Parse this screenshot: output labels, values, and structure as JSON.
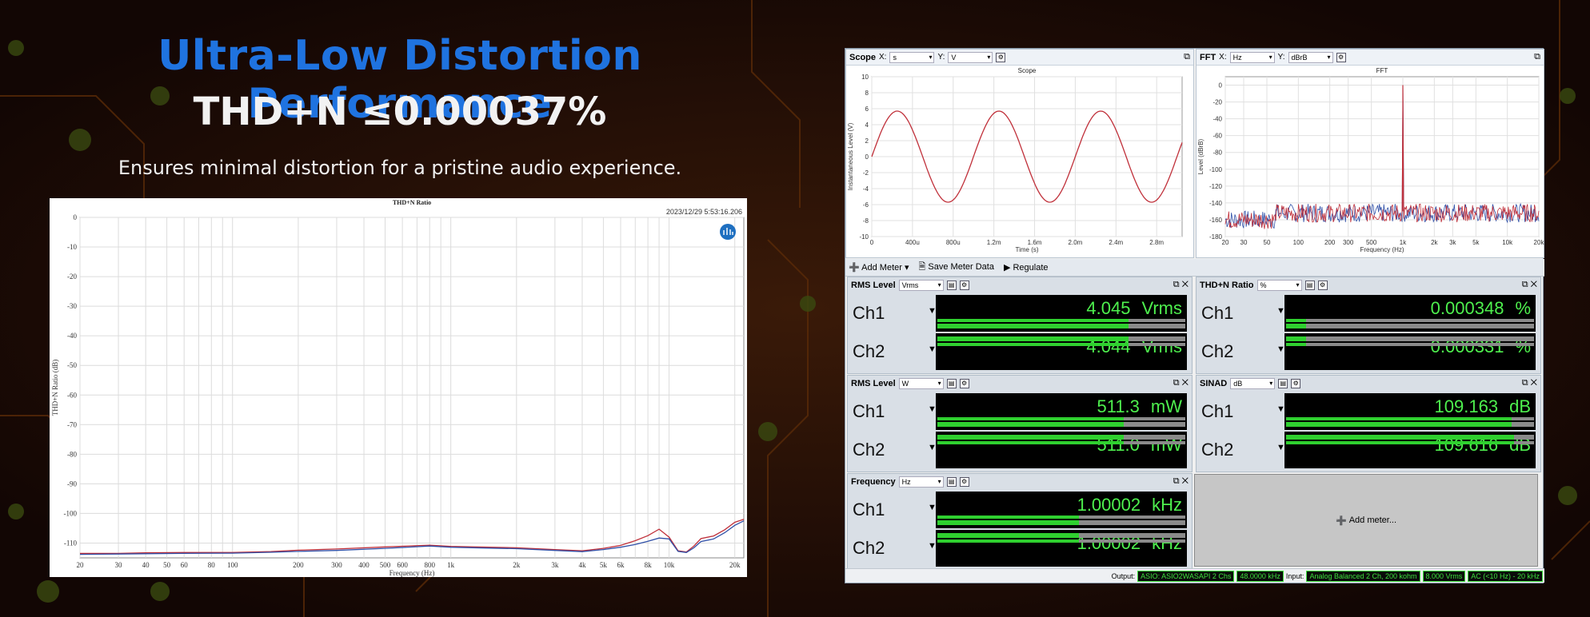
{
  "headline": {
    "title": "Ultra-Low Distortion Performance",
    "spec": "THD+N ≤0.00037%",
    "tagline": "Ensures minimal distortion for a pristine audio experience."
  },
  "colors": {
    "title": "#1f73e0",
    "ch1": "#c0303a",
    "ch2": "#3050a8",
    "meter_green": "#4ef04e"
  },
  "chart_data": [
    {
      "type": "line",
      "title": "THD+N Ratio",
      "timestamp": "2023/12/29 5:53:16.206",
      "xlabel": "Frequency (Hz)",
      "ylabel": "THD+N Ratio (dB)",
      "x_scale": "log",
      "xlim": [
        20,
        22000
      ],
      "ylim": [
        -115,
        0
      ],
      "x_ticks": [
        "20",
        "30",
        "40",
        "50",
        "60",
        "80",
        "100",
        "200",
        "300",
        "400",
        "500",
        "600",
        "800",
        "1k",
        "2k",
        "3k",
        "4k",
        "5k",
        "6k",
        "8k",
        "10k",
        "20k"
      ],
      "x_tick_values": [
        20,
        30,
        40,
        50,
        60,
        80,
        100,
        200,
        300,
        400,
        500,
        600,
        800,
        1000,
        2000,
        3000,
        4000,
        5000,
        6000,
        8000,
        10000,
        20000
      ],
      "y_ticks": [
        "0",
        "-10",
        "-20",
        "-30",
        "-40",
        "-50",
        "-60",
        "-70",
        "-80",
        "-90",
        "-100",
        "-110"
      ],
      "y_tick_values": [
        0,
        -10,
        -20,
        -30,
        -40,
        -50,
        -60,
        -70,
        -80,
        -90,
        -100,
        -110
      ],
      "grid": true,
      "series": [
        {
          "color": "#c0303a",
          "x": [
            20,
            30,
            40,
            60,
            100,
            150,
            200,
            300,
            500,
            800,
            1000,
            1500,
            2000,
            3000,
            4000,
            5000,
            6000,
            7000,
            8000,
            9000,
            10000,
            11000,
            12000,
            13000,
            14000,
            16000,
            18000,
            20000,
            22000
          ],
          "y": [
            -113.5,
            -113.5,
            -113.3,
            -113.2,
            -113.2,
            -112.9,
            -112.4,
            -112.0,
            -111.3,
            -110.7,
            -111.1,
            -111.4,
            -111.6,
            -112.2,
            -112.6,
            -111.8,
            -110.8,
            -109.2,
            -107.5,
            -105.3,
            -108.0,
            -112.6,
            -113.0,
            -111.0,
            -108.5,
            -107.6,
            -105.5,
            -103.0,
            -102.0
          ]
        },
        {
          "color": "#3050a8",
          "x": [
            20,
            30,
            40,
            60,
            100,
            150,
            200,
            300,
            500,
            800,
            1000,
            1500,
            2000,
            3000,
            4000,
            5000,
            6000,
            7000,
            8000,
            9000,
            10000,
            11000,
            12000,
            13000,
            14000,
            16000,
            18000,
            20000,
            22000
          ],
          "y": [
            -113.8,
            -113.7,
            -113.6,
            -113.5,
            -113.4,
            -113.1,
            -112.8,
            -112.5,
            -111.8,
            -111.0,
            -111.4,
            -111.7,
            -111.9,
            -112.5,
            -112.9,
            -112.2,
            -111.4,
            -110.5,
            -109.4,
            -108.3,
            -108.6,
            -112.8,
            -113.2,
            -111.6,
            -109.5,
            -108.6,
            -106.5,
            -104.0,
            -102.5
          ]
        }
      ]
    },
    {
      "type": "line",
      "title": "Scope",
      "xlabel": "Time (s)",
      "ylabel": "Instantaneous Level (V)",
      "xlim": [
        0,
        0.00305
      ],
      "ylim": [
        -10,
        10
      ],
      "x_ticks": [
        "0",
        "400u",
        "800u",
        "1.2m",
        "1.6m",
        "2.0m",
        "2.4m",
        "2.8m"
      ],
      "x_tick_values": [
        0,
        0.0004,
        0.0008,
        0.0012,
        0.0016,
        0.002,
        0.0024,
        0.0028
      ],
      "y_ticks": [
        "10",
        "8",
        "6",
        "4",
        "2",
        "0",
        "-2",
        "-4",
        "-6",
        "-8",
        "-10"
      ],
      "y_tick_values": [
        10,
        8,
        6,
        4,
        2,
        0,
        -2,
        -4,
        -6,
        -8,
        -10
      ],
      "series": [
        {
          "color": "#c0303a",
          "waveform": "sine",
          "amplitude": 5.7,
          "frequency_hz": 1000
        }
      ]
    },
    {
      "type": "line",
      "title": "FFT",
      "xlabel": "Frequency (Hz)",
      "ylabel": "Level (dBrB)",
      "x_scale": "log",
      "xlim": [
        20,
        20000
      ],
      "ylim": [
        -180,
        10
      ],
      "x_ticks": [
        "20",
        "30",
        "50",
        "100",
        "200",
        "300",
        "500",
        "1k",
        "2k",
        "3k",
        "5k",
        "10k",
        "20k"
      ],
      "x_tick_values": [
        20,
        30,
        50,
        100,
        200,
        300,
        500,
        1000,
        2000,
        3000,
        5000,
        10000,
        20000
      ],
      "y_ticks": [
        "0",
        "-20",
        "-40",
        "-60",
        "-80",
        "-100",
        "-120",
        "-140",
        "-160",
        "-180"
      ],
      "y_tick_values": [
        0,
        -20,
        -40,
        -60,
        -80,
        -100,
        -120,
        -140,
        -160,
        -180
      ],
      "fundamental": {
        "x": 1000,
        "y": 0
      },
      "noise_floor": -152,
      "series": [
        {
          "color": "#c0303a"
        },
        {
          "color": "#3050a8"
        }
      ]
    }
  ],
  "scope_panel": {
    "title": "Scope",
    "x_label": "X:",
    "x_unit": "s",
    "y_label": "Y:",
    "y_unit": "V"
  },
  "fft_panel": {
    "title": "FFT",
    "x_label": "X:",
    "x_unit": "Hz",
    "y_label": "Y:",
    "y_unit": "dBrB"
  },
  "toolbar": {
    "add_meter": "Add Meter",
    "save_meter_data": "Save Meter Data",
    "regulate": "Regulate"
  },
  "meters": {
    "rms_v": {
      "title": "RMS Level",
      "unit_select": "Vrms",
      "ch1": {
        "label": "Ch1",
        "value": "4.045",
        "unit": "Vrms",
        "bar_fraction": 0.77
      },
      "ch2": {
        "label": "Ch2",
        "value": "4.044",
        "unit": "Vrms",
        "bar_fraction": 0.77
      }
    },
    "rms_w": {
      "title": "RMS Level",
      "unit_select": "W",
      "ch1": {
        "label": "Ch1",
        "value": "511.3",
        "unit": "mW",
        "bar_fraction": 0.75
      },
      "ch2": {
        "label": "Ch2",
        "value": "511.0",
        "unit": "mW",
        "bar_fraction": 0.75
      }
    },
    "freq": {
      "title": "Frequency",
      "unit_select": "Hz",
      "ch1": {
        "label": "Ch1",
        "value": "1.00002",
        "unit": "kHz",
        "bar_fraction": 0.57
      },
      "ch2": {
        "label": "Ch2",
        "value": "1.00002",
        "unit": "kHz",
        "bar_fraction": 0.57
      }
    },
    "thd": {
      "title": "THD+N Ratio",
      "unit_select": "%",
      "ch1": {
        "label": "Ch1",
        "value": "0.000348",
        "unit": "%",
        "bar_fraction": 0.08
      },
      "ch2": {
        "label": "Ch2",
        "value": "0.000331",
        "unit": "%",
        "bar_fraction": 0.08
      }
    },
    "sinad": {
      "title": "SINAD",
      "unit_select": "dB",
      "ch1": {
        "label": "Ch1",
        "value": "109.163",
        "unit": "dB",
        "bar_fraction": 0.91
      },
      "ch2": {
        "label": "Ch2",
        "value": "109.616",
        "unit": "dB",
        "bar_fraction": 0.92
      }
    }
  },
  "add_meter_placeholder": "Add meter...",
  "status": {
    "output_label": "Output:",
    "output_device": "ASIO: ASIO2WASAPI 2 Chs",
    "sample_rate": "48.0000 kHz",
    "input_label": "Input:",
    "input_config": "Analog Balanced 2 Ch, 200 kohm",
    "input_range": "8.000 Vrms",
    "filter": "AC (<10 Hz) - 20 kHz"
  }
}
